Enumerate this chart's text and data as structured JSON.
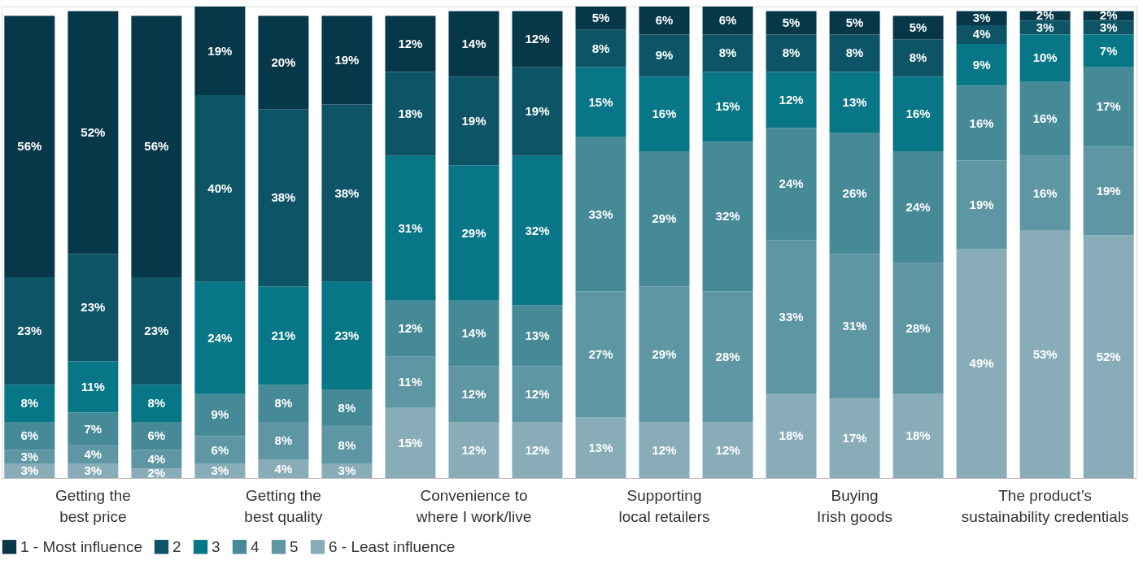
{
  "chart_data": {
    "type": "bar",
    "stacked": true,
    "legend": "bottom left",
    "grid": false,
    "categories": [
      null,
      "Getting the\nbest price",
      null,
      null,
      "Getting the\nbest quality",
      null,
      null,
      "Convenience to\nwhere I work/live",
      null,
      null,
      "Supporting\nlocal retailers",
      null,
      null,
      "Buying\nIrish goods",
      null,
      null,
      "The product’s\nsustainability credentials",
      null
    ],
    "series": [
      {
        "name": "6 - Least influence",
        "color": "#89adb8",
        "values": [
          3,
          3,
          2,
          3,
          4,
          3,
          15,
          12,
          12,
          13,
          12,
          12,
          18,
          17,
          18,
          49,
          53,
          52
        ],
        "value_labels": [
          "3%",
          "3%",
          "2%",
          "3%",
          "4%",
          "3%",
          "15%",
          "12%",
          "12%",
          "13%",
          "12%",
          "12%",
          "18%",
          "17%",
          "18%",
          "49%",
          "53%",
          "52%"
        ]
      },
      {
        "name": "5",
        "color": "#5e96a3",
        "values": [
          3,
          4,
          4,
          6,
          8,
          8,
          11,
          12,
          12,
          27,
          29,
          28,
          33,
          31,
          28,
          19,
          16,
          19
        ],
        "value_labels": [
          "3%",
          "4%",
          "4%",
          "6%",
          "8%",
          "8%",
          "11%",
          "12%",
          "12%",
          "27%",
          "29%",
          "28%",
          "33%",
          "31%",
          "28%",
          "19%",
          "16%",
          "19%"
        ]
      },
      {
        "name": "4",
        "color": "#468a98",
        "values": [
          6,
          7,
          6,
          9,
          8,
          8,
          12,
          14,
          13,
          33,
          29,
          32,
          24,
          26,
          24,
          16,
          16,
          17
        ],
        "value_labels": [
          "6%",
          "7%",
          "6%",
          "9%",
          "8%",
          "8%",
          "12%",
          "14%",
          "13%",
          "33%",
          "29%",
          "32%",
          "24%",
          "26%",
          "24%",
          "16%",
          "16%",
          "17%"
        ]
      },
      {
        "name": "3",
        "color": "#077686",
        "values": [
          8,
          11,
          8,
          24,
          21,
          23,
          31,
          29,
          32,
          15,
          16,
          15,
          12,
          13,
          16,
          9,
          10,
          7
        ],
        "value_labels": [
          "8%",
          "11%",
          "8%",
          "24%",
          "21%",
          "23%",
          "31%",
          "29%",
          "32%",
          "15%",
          "16%",
          "15%",
          "12%",
          "13%",
          "16%",
          "9%",
          "10%",
          "7%"
        ]
      },
      {
        "name": "2",
        "color": "#0d5566",
        "values": [
          23,
          23,
          23,
          40,
          38,
          38,
          18,
          19,
          19,
          8,
          9,
          8,
          8,
          8,
          8,
          4,
          3,
          3
        ],
        "value_labels": [
          "23%",
          "23%",
          "23%",
          "40%",
          "38%",
          "38%",
          "18%",
          "19%",
          "19%",
          "8%",
          "9%",
          "8%",
          "8%",
          "8%",
          "8%",
          "4%",
          "3%",
          "3%"
        ]
      },
      {
        "name": "1 - Most influence",
        "color": "#07384a",
        "values": [
          56,
          52,
          56,
          19,
          20,
          19,
          12,
          14,
          12,
          5,
          6,
          6,
          5,
          5,
          5,
          3,
          2,
          2
        ],
        "value_labels": [
          "56%",
          "52%",
          "56%",
          "19%",
          "20%",
          "19%",
          "12%",
          "14%",
          "12%",
          "5%",
          "6%",
          "6%",
          "5%",
          "5%",
          "5%",
          "3%",
          "2%",
          "2%"
        ]
      }
    ]
  }
}
